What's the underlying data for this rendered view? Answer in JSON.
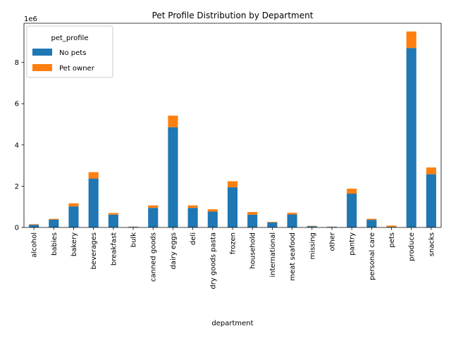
{
  "chart_data": {
    "type": "bar",
    "stacked": true,
    "title": "Pet Profile Distribution by Department",
    "xlabel": "department",
    "ylabel": "",
    "y_scale_label": "1e6",
    "ylim": [
      0,
      9.9
    ],
    "y_unit_multiplier": 1000000,
    "yticks": [
      0,
      2,
      4,
      6,
      8
    ],
    "ytick_labels": [
      "0",
      "2",
      "4",
      "6",
      "8"
    ],
    "grid": false,
    "legend": {
      "title": "pet_profile",
      "placement": "top-left"
    },
    "categories": [
      "alcohol",
      "babies",
      "bakery",
      "beverages",
      "breakfast",
      "bulk",
      "canned goods",
      "dairy eggs",
      "deli",
      "dry goods pasta",
      "frozen",
      "household",
      "international",
      "meat seafood",
      "missing",
      "other",
      "pantry",
      "personal care",
      "pets",
      "produce",
      "snacks"
    ],
    "series": [
      {
        "name": "No pets",
        "color": "#1f77b4",
        "values": [
          0.13,
          0.38,
          1.02,
          2.37,
          0.62,
          0.03,
          0.95,
          4.86,
          0.95,
          0.77,
          1.95,
          0.62,
          0.24,
          0.63,
          0.06,
          0.03,
          1.64,
          0.37,
          0.03,
          8.7,
          2.58
        ]
      },
      {
        "name": "Pet owner",
        "color": "#ff7f0e",
        "values": [
          0.03,
          0.04,
          0.15,
          0.31,
          0.08,
          0.01,
          0.12,
          0.56,
          0.12,
          0.11,
          0.29,
          0.13,
          0.03,
          0.08,
          0.02,
          0.01,
          0.24,
          0.05,
          0.06,
          0.8,
          0.33
        ]
      }
    ]
  }
}
